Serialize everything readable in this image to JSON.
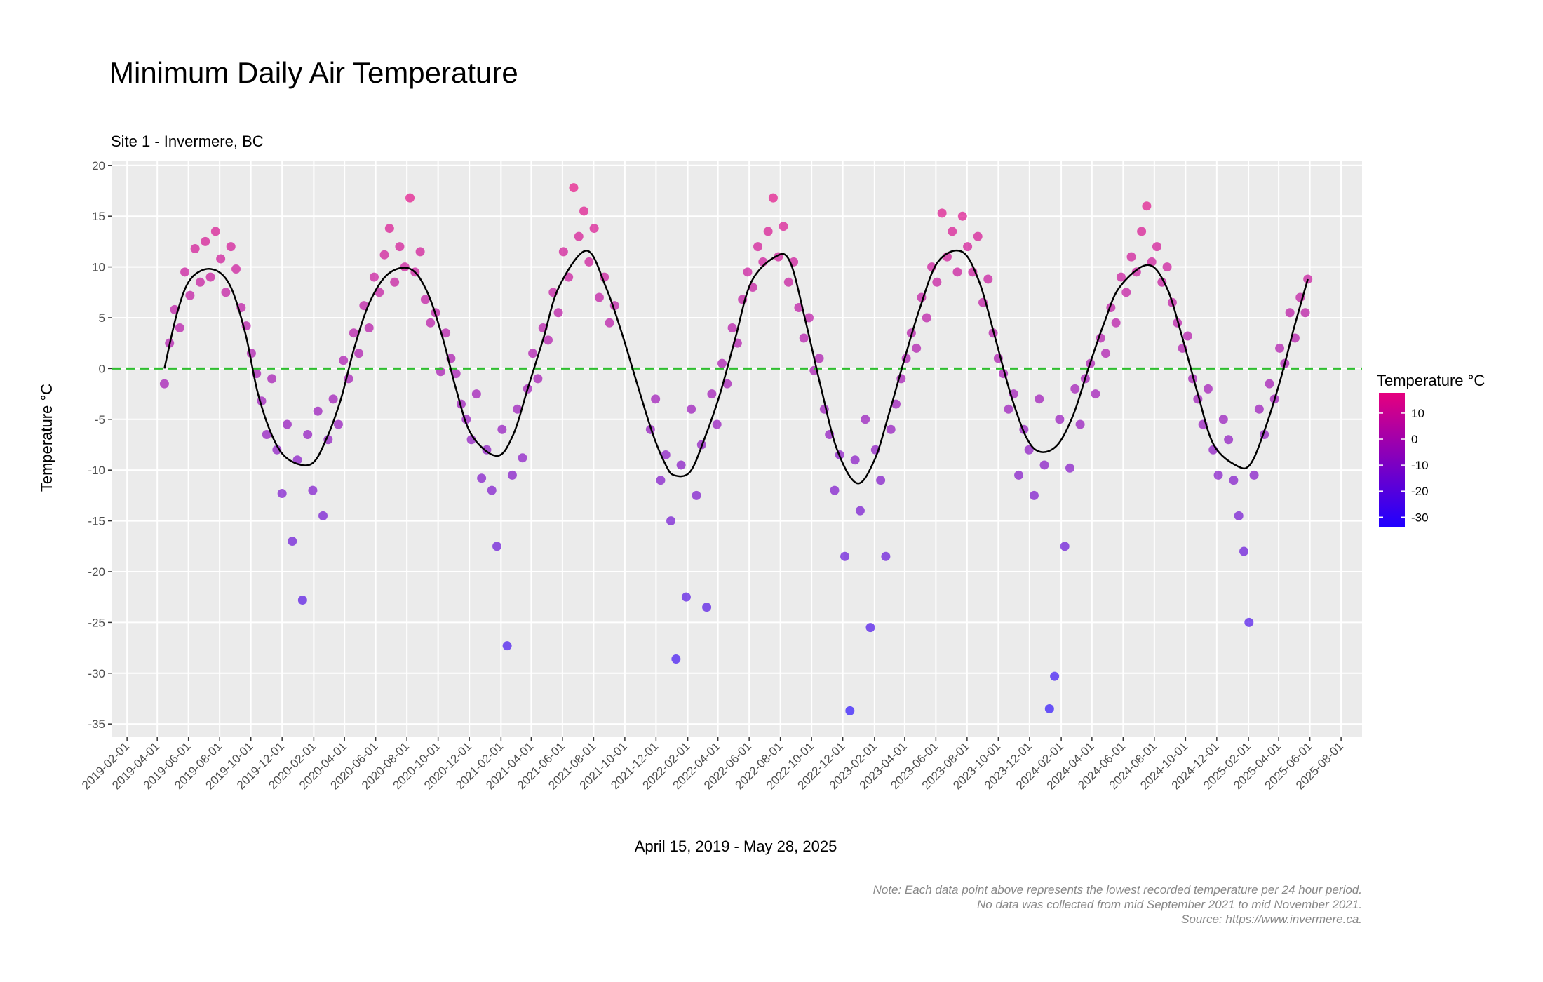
{
  "chart_data": {
    "type": "scatter",
    "title": "Minimum Daily Air Temperature",
    "subtitle": "Site 1 - Invermere, BC",
    "xlabel": "April 15, 2019 - May 28, 2025",
    "ylabel": "Temperature °C",
    "legend_title": "Temperature °C",
    "notes": [
      "Note: Each data point above represents the lowest recorded temperature per 24 hour period.",
      "No data was collected from mid September 2021 to mid November 2021.",
      "Source: https://www.invermere.ca."
    ],
    "xlim": [
      "2019-01-03",
      "2025-09-11"
    ],
    "xticks": [
      "2019-02-01",
      "2019-04-01",
      "2019-06-01",
      "2019-08-01",
      "2019-10-01",
      "2019-12-01",
      "2020-02-01",
      "2020-04-01",
      "2020-06-01",
      "2020-08-01",
      "2020-10-01",
      "2020-12-01",
      "2021-02-01",
      "2021-04-01",
      "2021-06-01",
      "2021-08-01",
      "2021-10-01",
      "2021-12-01",
      "2022-02-01",
      "2022-04-01",
      "2022-06-01",
      "2022-08-01",
      "2022-10-01",
      "2022-12-01",
      "2023-02-01",
      "2023-04-01",
      "2023-06-01",
      "2023-08-01",
      "2023-10-01",
      "2023-12-01",
      "2024-02-01",
      "2024-04-01",
      "2024-06-01",
      "2024-08-01",
      "2024-10-01",
      "2024-12-01",
      "2025-02-01",
      "2025-04-01",
      "2025-06-01",
      "2025-08-01"
    ],
    "ylim": [
      -36.3,
      20.4
    ],
    "yticks": [
      -35,
      -30,
      -25,
      -20,
      -15,
      -10,
      -5,
      0,
      5,
      10,
      15,
      20
    ],
    "grid": true,
    "reference_line": 0,
    "reference_color": "#2fbf2f",
    "color_scale": {
      "low": "#1f00ff",
      "high": "#e6007e",
      "limits": [
        -33.7,
        17.8
      ],
      "ticks": [
        -30,
        -20,
        -10,
        0,
        10
      ]
    },
    "legend_position": "right",
    "points": {
      "x": [
        "2019-04-15",
        "2019-04-25",
        "2019-05-05",
        "2019-05-15",
        "2019-05-25",
        "2019-06-04",
        "2019-06-14",
        "2019-06-24",
        "2019-07-04",
        "2019-07-14",
        "2019-07-24",
        "2019-08-03",
        "2019-08-13",
        "2019-08-23",
        "2019-09-02",
        "2019-09-12",
        "2019-09-22",
        "2019-10-02",
        "2019-10-12",
        "2019-10-22",
        "2019-11-01",
        "2019-11-11",
        "2019-11-21",
        "2019-12-01",
        "2019-12-11",
        "2019-12-21",
        "2019-12-31",
        "2020-01-10",
        "2020-01-20",
        "2020-01-30",
        "2020-02-09",
        "2020-02-19",
        "2020-02-29",
        "2020-03-10",
        "2020-03-20",
        "2020-03-30",
        "2020-04-09",
        "2020-04-19",
        "2020-04-29",
        "2020-05-09",
        "2020-05-19",
        "2020-05-29",
        "2020-06-08",
        "2020-06-18",
        "2020-06-28",
        "2020-07-08",
        "2020-07-18",
        "2020-07-28",
        "2020-08-07",
        "2020-08-17",
        "2020-08-27",
        "2020-09-06",
        "2020-09-16",
        "2020-09-26",
        "2020-10-06",
        "2020-10-16",
        "2020-10-26",
        "2020-11-05",
        "2020-11-15",
        "2020-11-25",
        "2020-12-05",
        "2020-12-15",
        "2020-12-25",
        "2021-01-04",
        "2021-01-14",
        "2021-01-24",
        "2021-02-03",
        "2021-02-13",
        "2021-02-23",
        "2021-03-05",
        "2021-03-15",
        "2021-03-25",
        "2021-04-04",
        "2021-04-14",
        "2021-04-24",
        "2021-05-04",
        "2021-05-14",
        "2021-05-24",
        "2021-06-03",
        "2021-06-13",
        "2021-06-23",
        "2021-07-03",
        "2021-07-13",
        "2021-07-23",
        "2021-08-02",
        "2021-08-12",
        "2021-08-22",
        "2021-09-01",
        "2021-09-11",
        "2021-11-20",
        "2021-11-30",
        "2021-12-10",
        "2021-12-20",
        "2021-12-30",
        "2022-01-09",
        "2022-01-19",
        "2022-01-29",
        "2022-02-08",
        "2022-02-18",
        "2022-02-28",
        "2022-03-10",
        "2022-03-20",
        "2022-03-30",
        "2022-04-09",
        "2022-04-19",
        "2022-04-29",
        "2022-05-09",
        "2022-05-19",
        "2022-05-29",
        "2022-06-08",
        "2022-06-18",
        "2022-06-28",
        "2022-07-08",
        "2022-07-18",
        "2022-07-28",
        "2022-08-07",
        "2022-08-17",
        "2022-08-27",
        "2022-09-06",
        "2022-09-16",
        "2022-09-26",
        "2022-10-06",
        "2022-10-16",
        "2022-10-26",
        "2022-11-05",
        "2022-11-15",
        "2022-11-25",
        "2022-12-05",
        "2022-12-15",
        "2022-12-25",
        "2023-01-04",
        "2023-01-14",
        "2023-01-24",
        "2023-02-03",
        "2023-02-13",
        "2023-02-23",
        "2023-03-05",
        "2023-03-15",
        "2023-03-25",
        "2023-04-04",
        "2023-04-14",
        "2023-04-24",
        "2023-05-04",
        "2023-05-14",
        "2023-05-24",
        "2023-06-03",
        "2023-06-13",
        "2023-06-23",
        "2023-07-03",
        "2023-07-13",
        "2023-07-23",
        "2023-08-02",
        "2023-08-12",
        "2023-08-22",
        "2023-09-01",
        "2023-09-11",
        "2023-09-21",
        "2023-10-01",
        "2023-10-11",
        "2023-10-21",
        "2023-10-31",
        "2023-11-10",
        "2023-11-20",
        "2023-11-30",
        "2023-12-10",
        "2023-12-20",
        "2023-12-30",
        "2024-01-09",
        "2024-01-19",
        "2024-01-29",
        "2024-02-08",
        "2024-02-18",
        "2024-02-28",
        "2024-03-09",
        "2024-03-19",
        "2024-03-29",
        "2024-04-08",
        "2024-04-18",
        "2024-04-28",
        "2024-05-08",
        "2024-05-18",
        "2024-05-28",
        "2024-06-07",
        "2024-06-17",
        "2024-06-27",
        "2024-07-07",
        "2024-07-17",
        "2024-07-27",
        "2024-08-06",
        "2024-08-16",
        "2024-08-26",
        "2024-09-05",
        "2024-09-15",
        "2024-09-25",
        "2024-10-05",
        "2024-10-15",
        "2024-10-25",
        "2024-11-04",
        "2024-11-14",
        "2024-11-24",
        "2024-12-04",
        "2024-12-14",
        "2024-12-24",
        "2025-01-03",
        "2025-01-13",
        "2025-01-23",
        "2025-02-02",
        "2025-02-12",
        "2025-02-22",
        "2025-03-04",
        "2025-03-14",
        "2025-03-24",
        "2025-04-03",
        "2025-04-13",
        "2025-04-23",
        "2025-05-03",
        "2025-05-13",
        "2025-05-23",
        "2025-05-28"
      ],
      "values": [
        -1.5,
        2.5,
        5.8,
        4.0,
        9.5,
        7.2,
        11.8,
        8.5,
        12.5,
        9.0,
        13.5,
        10.8,
        7.5,
        12.0,
        9.8,
        6.0,
        4.2,
        1.5,
        -0.5,
        -3.2,
        -6.5,
        -1.0,
        -8.0,
        -12.3,
        -5.5,
        -17.0,
        -9.0,
        -22.8,
        -6.5,
        -12.0,
        -4.2,
        -14.5,
        -7.0,
        -3.0,
        -5.5,
        0.8,
        -1.0,
        3.5,
        1.5,
        6.2,
        4.0,
        9.0,
        7.5,
        11.2,
        13.8,
        8.5,
        12.0,
        10.0,
        16.8,
        9.5,
        11.5,
        6.8,
        4.5,
        5.5,
        -0.3,
        3.5,
        1.0,
        -0.5,
        -3.5,
        -5.0,
        -7.0,
        -2.5,
        -10.8,
        -8.0,
        -12.0,
        -17.5,
        -6.0,
        -27.3,
        -10.5,
        -4.0,
        -8.8,
        -2.0,
        1.5,
        -1.0,
        4.0,
        2.8,
        7.5,
        5.5,
        11.5,
        9.0,
        17.8,
        13.0,
        15.5,
        10.5,
        13.8,
        7.0,
        9.0,
        4.5,
        6.2,
        -6.0,
        -3.0,
        -11.0,
        -8.5,
        -15.0,
        -28.6,
        -9.5,
        -22.5,
        -4.0,
        -12.5,
        -7.5,
        -23.5,
        -2.5,
        -5.5,
        0.5,
        -1.5,
        4.0,
        2.5,
        6.8,
        9.5,
        8.0,
        12.0,
        10.5,
        13.5,
        16.8,
        11.0,
        14.0,
        8.5,
        10.5,
        6.0,
        3.0,
        5.0,
        -0.2,
        1.0,
        -4.0,
        -6.5,
        -12.0,
        -8.5,
        -18.5,
        -33.7,
        -9.0,
        -14.0,
        -5.0,
        -25.5,
        -8.0,
        -11.0,
        -18.5,
        -6.0,
        -3.5,
        -1.0,
        1.0,
        3.5,
        2.0,
        7.0,
        5.0,
        10.0,
        8.5,
        15.3,
        11.0,
        13.5,
        9.5,
        15.0,
        12.0,
        9.5,
        13.0,
        6.5,
        8.8,
        3.5,
        1.0,
        -0.5,
        -4.0,
        -2.5,
        -10.5,
        -6.0,
        -8.0,
        -12.5,
        -3.0,
        -9.5,
        -33.5,
        -30.3,
        -5.0,
        -17.5,
        -9.8,
        -2.0,
        -5.5,
        -1.0,
        0.5,
        -2.5,
        3.0,
        1.5,
        6.0,
        4.5,
        9.0,
        7.5,
        11.0,
        9.5,
        13.5,
        16.0,
        10.5,
        12.0,
        8.5,
        10.0,
        6.5,
        4.5,
        2.0,
        3.2,
        -1.0,
        -3.0,
        -5.5,
        -2.0,
        -8.0,
        -10.5,
        -5.0,
        -7.0,
        -11.0,
        -14.5,
        -18.0,
        -25.0,
        -10.5,
        -4.0,
        -6.5,
        -1.5,
        -3.0,
        2.0,
        0.5,
        5.5,
        3.0,
        7.0,
        5.5,
        8.8
      ]
    },
    "trend": {
      "color": "#000000",
      "x": [
        "2019-04-15",
        "2019-05-10",
        "2019-06-05",
        "2019-07-15",
        "2019-08-20",
        "2019-09-20",
        "2019-10-15",
        "2019-11-15",
        "2019-12-15",
        "2020-01-27",
        "2020-02-25",
        "2020-03-25",
        "2020-04-20",
        "2020-05-20",
        "2020-06-25",
        "2020-08-08",
        "2020-09-10",
        "2020-10-10",
        "2020-11-05",
        "2020-12-05",
        "2021-01-24",
        "2021-02-25",
        "2021-03-25",
        "2021-04-25",
        "2021-05-25",
        "2021-07-18",
        "2021-08-25",
        "2021-09-25",
        "2021-10-25",
        "2021-11-25",
        "2021-12-20",
        "2022-01-05",
        "2022-02-05",
        "2022-03-05",
        "2022-04-05",
        "2022-05-05",
        "2022-06-05",
        "2022-07-22",
        "2022-08-20",
        "2022-09-20",
        "2022-10-20",
        "2022-11-20",
        "2022-12-29",
        "2023-02-01",
        "2023-03-01",
        "2023-04-01",
        "2023-05-01",
        "2023-06-05",
        "2023-07-22",
        "2023-08-25",
        "2023-09-25",
        "2023-10-25",
        "2023-11-25",
        "2023-12-22",
        "2024-01-25",
        "2024-02-25",
        "2024-03-25",
        "2024-04-25",
        "2024-05-25",
        "2024-07-19",
        "2024-08-25",
        "2024-09-25",
        "2024-10-25",
        "2024-11-25",
        "2025-01-10",
        "2025-02-05",
        "2025-03-05",
        "2025-04-05",
        "2025-05-01",
        "2025-05-28"
      ],
      "values": [
        0,
        5.5,
        8.8,
        9.8,
        8.3,
        3.5,
        -2.5,
        -7.0,
        -9.0,
        -9.4,
        -7.0,
        -3.0,
        2.0,
        6.5,
        9.3,
        9.8,
        7.5,
        3.0,
        -2.0,
        -6.5,
        -8.6,
        -6.5,
        -2.0,
        3.0,
        8.0,
        11.6,
        8.0,
        3.5,
        -1.5,
        -6.5,
        -9.5,
        -10.5,
        -10.2,
        -7.0,
        -2.5,
        3.0,
        8.5,
        11.0,
        10.5,
        4.5,
        -2.0,
        -8.0,
        -11.3,
        -9.0,
        -4.5,
        1.0,
        6.0,
        10.5,
        11.5,
        8.5,
        3.0,
        -2.5,
        -6.8,
        -8.2,
        -7.5,
        -4.5,
        0,
        4.5,
        8.0,
        10.2,
        8.0,
        3.0,
        -2.5,
        -7.5,
        -9.6,
        -9.4,
        -6.0,
        -1.0,
        4.0,
        8.8
      ]
    }
  }
}
